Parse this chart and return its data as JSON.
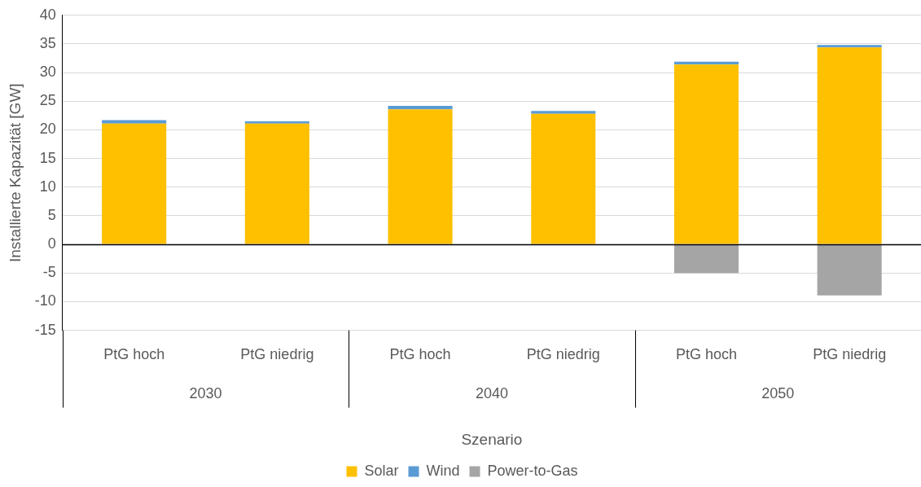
{
  "chart_data": {
    "type": "bar",
    "stacked": true,
    "xlabel": "Szenario",
    "ylabel": "Installierte Kapazität [GW]",
    "categories": [
      "PtG hoch",
      "PtG niedrig",
      "PtG hoch",
      "PtG niedrig",
      "PtG hoch",
      "PtG niedrig"
    ],
    "annotations": [
      "2030",
      "2040",
      "2050"
    ],
    "series": [
      {
        "name": "Solar",
        "color": "#ffc000",
        "values": [
          21.1,
          21.1,
          23.6,
          22.8,
          31.4,
          34.4
        ]
      },
      {
        "name": "Wind",
        "color": "#5b9bd5",
        "values": [
          0.6,
          0.4,
          0.6,
          0.5,
          0.5,
          0.4
        ]
      },
      {
        "name": "Power-to-Gas",
        "color": "#a5a5a5",
        "values": [
          0,
          0,
          0,
          0,
          -5.0,
          -8.9
        ]
      }
    ],
    "ylim": [
      -15,
      40
    ],
    "yticks": [
      -15,
      -10,
      -5,
      0,
      5,
      10,
      15,
      20,
      25,
      30,
      35,
      40
    ],
    "grid": "y",
    "legend": "bottom"
  }
}
